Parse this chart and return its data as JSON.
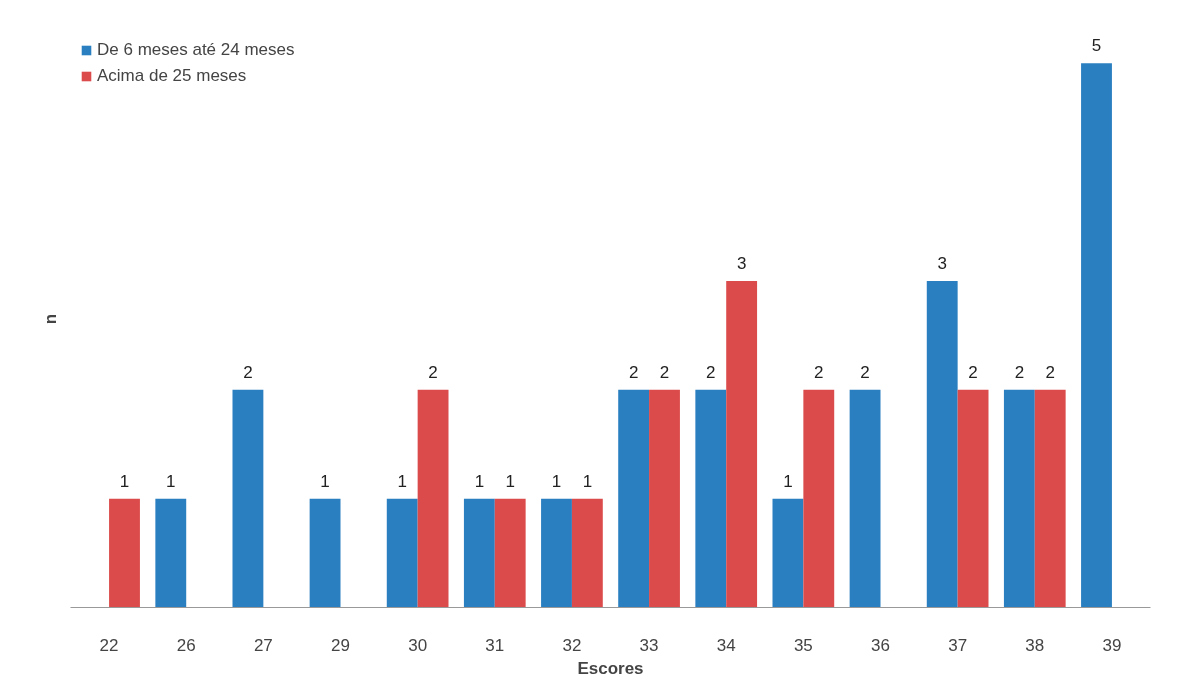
{
  "chart_data": {
    "type": "bar",
    "xlabel": "Escores",
    "ylabel": "n",
    "categories": [
      "22",
      "26",
      "27",
      "29",
      "30",
      "31",
      "32",
      "33",
      "34",
      "35",
      "36",
      "37",
      "38",
      "39"
    ],
    "series": [
      {
        "name": "De 6 meses até 24 meses",
        "color": "#2a7fc1",
        "values": [
          null,
          1,
          2,
          1,
          1,
          1,
          1,
          2,
          2,
          1,
          2,
          3,
          2,
          5
        ]
      },
      {
        "name": "Acima de 25 meses",
        "color": "#dc4b4b",
        "values": [
          1,
          null,
          null,
          null,
          2,
          1,
          1,
          2,
          3,
          2,
          null,
          2,
          2,
          null
        ]
      }
    ],
    "tick_labels": "x",
    "data_labels": true,
    "legend": "top left",
    "grid": false
  }
}
